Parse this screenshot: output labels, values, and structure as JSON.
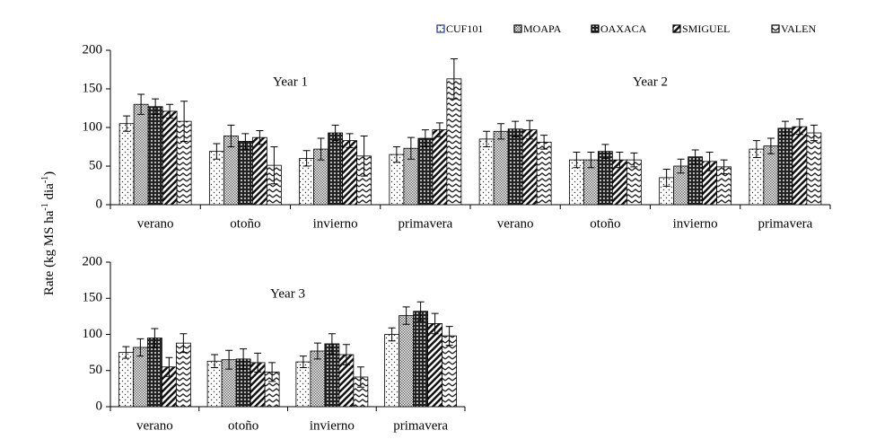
{
  "chart_data": [
    {
      "type": "bar",
      "ylabel": [
        "Rate (kg MS ha",
        "-1",
        " dia",
        "-1",
        ")"
      ],
      "annotations": [
        "Year 1",
        "Year 2"
      ],
      "categories": [
        "verano",
        "otoño",
        "invierno",
        "primavera",
        "verano",
        "otoño",
        "invierno",
        "primavera"
      ],
      "ylim": [
        0,
        200
      ],
      "yticks": [
        0,
        50,
        100,
        150,
        200
      ],
      "legend": "top-right",
      "series": [
        {
          "name": "CUF101",
          "color": "#000",
          "pattern": "dots",
          "values": [
            105,
            69,
            60,
            65,
            85,
            58,
            35,
            72
          ],
          "errors": [
            10,
            10,
            10,
            10,
            10,
            10,
            11,
            11
          ]
        },
        {
          "name": "MOAPA",
          "color": "#000",
          "pattern": "checker",
          "values": [
            130,
            89,
            72,
            73,
            95,
            58,
            50,
            76
          ],
          "errors": [
            13,
            14,
            14,
            14,
            10,
            10,
            9,
            10
          ]
        },
        {
          "name": "OAXACA",
          "color": "#000",
          "pattern": "darkchecker",
          "values": [
            127,
            82,
            93,
            86,
            98,
            69,
            62,
            99
          ],
          "errors": [
            10,
            10,
            10,
            11,
            10,
            9,
            9,
            9
          ]
        },
        {
          "name": "SMIGUEL",
          "color": "#000",
          "pattern": "diagonal",
          "values": [
            121,
            87,
            83,
            97,
            97,
            58,
            56,
            101
          ],
          "errors": [
            9,
            9,
            9,
            9,
            12,
            10,
            12,
            10
          ]
        },
        {
          "name": "VALEN",
          "color": "#000",
          "pattern": "zigzag",
          "values": [
            108,
            51,
            63,
            163,
            81,
            58,
            49,
            93
          ],
          "errors": [
            26,
            24,
            26,
            26,
            9,
            9,
            9,
            10
          ]
        }
      ]
    },
    {
      "type": "bar",
      "annotations": [
        "Year 3"
      ],
      "categories": [
        "verano",
        "otoño",
        "invierno",
        "primavera"
      ],
      "ylim": [
        0,
        200
      ],
      "yticks": [
        0,
        50,
        100,
        150,
        200
      ],
      "series": [
        {
          "color": "#000",
          "pattern": "dots",
          "values": [
            75,
            63,
            62,
            100
          ],
          "errors": [
            8,
            9,
            8,
            9
          ]
        },
        {
          "color": "#000",
          "pattern": "checker",
          "values": [
            82,
            65,
            77,
            126
          ],
          "errors": [
            12,
            13,
            11,
            12
          ]
        },
        {
          "color": "#000",
          "pattern": "darkchecker",
          "values": [
            95,
            66,
            87,
            132
          ],
          "errors": [
            13,
            14,
            14,
            13
          ]
        },
        {
          "color": "#000",
          "pattern": "diagonal",
          "values": [
            55,
            61,
            72,
            115
          ],
          "errors": [
            13,
            13,
            14,
            14
          ]
        },
        {
          "color": "#000",
          "pattern": "zigzag",
          "values": [
            88,
            48,
            41,
            98
          ],
          "errors": [
            13,
            13,
            14,
            13
          ]
        }
      ]
    }
  ]
}
